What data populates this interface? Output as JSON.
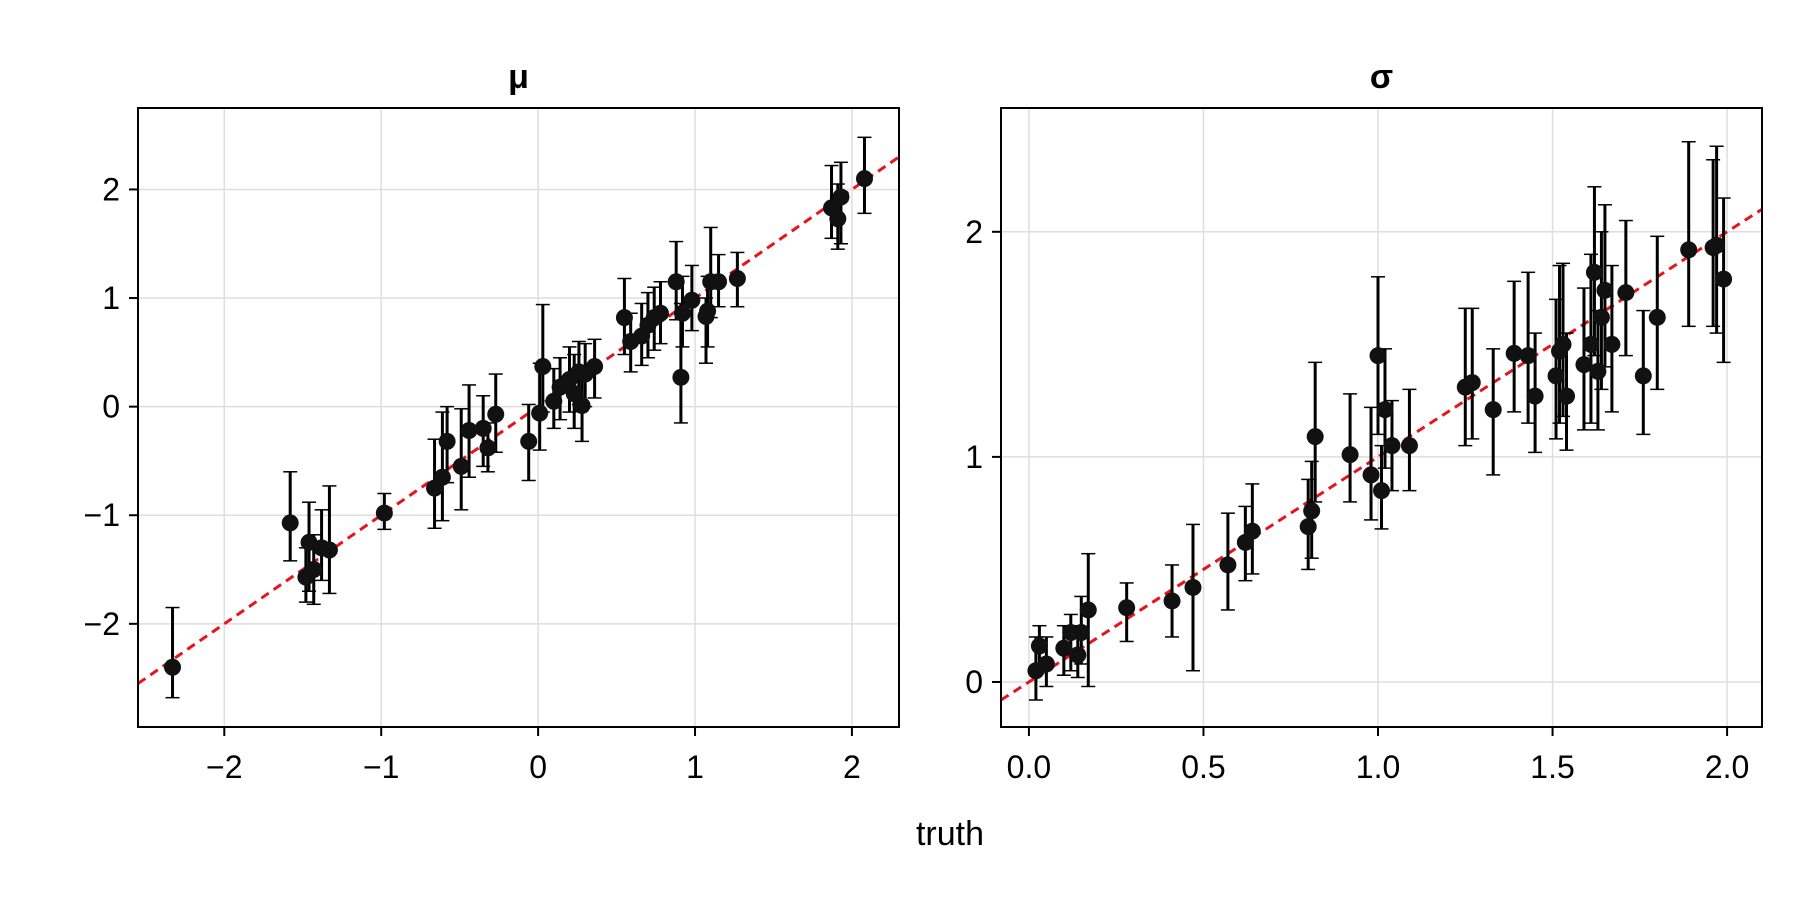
{
  "figure": {
    "xlabel": "truth",
    "colors": {
      "points": "#111111",
      "errorbars": "#000000",
      "reference_line": "#e8141c",
      "grid": "#dedede"
    }
  },
  "chart_data": [
    {
      "type": "scatter",
      "title": "μ",
      "xlabel": "truth",
      "ylabel": "",
      "xlim": [
        -2.55,
        2.3
      ],
      "ylim": [
        -2.95,
        2.75
      ],
      "xticks": [
        -2,
        -1,
        0,
        1,
        2
      ],
      "xtick_labels": [
        "−2",
        "−1",
        "0",
        "1",
        "2"
      ],
      "yticks": [
        -2,
        -1,
        0,
        1,
        2
      ],
      "ytick_labels": [
        "−2",
        "−1",
        "0",
        "1",
        "2"
      ],
      "grid": true,
      "reference_line": {
        "style": "dashed",
        "slope": 1,
        "intercept": 0
      },
      "series": [
        {
          "points": [
            {
              "x": -2.33,
              "y": -2.4,
              "lo": -2.68,
              "hi": -1.85
            },
            {
              "x": -1.58,
              "y": -1.07,
              "lo": -1.42,
              "hi": -0.6
            },
            {
              "x": -1.48,
              "y": -1.57,
              "lo": -1.8,
              "hi": -1.3
            },
            {
              "x": -1.46,
              "y": -1.25,
              "lo": -1.7,
              "hi": -0.88
            },
            {
              "x": -1.43,
              "y": -1.5,
              "lo": -1.82,
              "hi": -1.18
            },
            {
              "x": -1.38,
              "y": -1.3,
              "lo": -1.6,
              "hi": -0.95
            },
            {
              "x": -1.33,
              "y": -1.32,
              "lo": -1.72,
              "hi": -0.73
            },
            {
              "x": -0.98,
              "y": -0.98,
              "lo": -1.13,
              "hi": -0.8
            },
            {
              "x": -0.66,
              "y": -0.75,
              "lo": -1.12,
              "hi": -0.3
            },
            {
              "x": -0.61,
              "y": -0.65,
              "lo": -1.05,
              "hi": -0.05
            },
            {
              "x": -0.58,
              "y": -0.32,
              "lo": -0.7,
              "hi": 0.0
            },
            {
              "x": -0.49,
              "y": -0.55,
              "lo": -0.95,
              "hi": -0.02
            },
            {
              "x": -0.44,
              "y": -0.22,
              "lo": -0.65,
              "hi": 0.2
            },
            {
              "x": -0.35,
              "y": -0.2,
              "lo": -0.55,
              "hi": 0.1
            },
            {
              "x": -0.32,
              "y": -0.38,
              "lo": -0.6,
              "hi": -0.15
            },
            {
              "x": -0.27,
              "y": -0.07,
              "lo": -0.42,
              "hi": 0.3
            },
            {
              "x": -0.06,
              "y": -0.32,
              "lo": -0.68,
              "hi": 0.02
            },
            {
              "x": 0.01,
              "y": -0.06,
              "lo": -0.4,
              "hi": 0.4
            },
            {
              "x": 0.03,
              "y": 0.37,
              "lo": -0.05,
              "hi": 0.94
            },
            {
              "x": 0.1,
              "y": 0.05,
              "lo": -0.2,
              "hi": 0.35
            },
            {
              "x": 0.14,
              "y": 0.18,
              "lo": -0.12,
              "hi": 0.45
            },
            {
              "x": 0.2,
              "y": 0.25,
              "lo": -0.05,
              "hi": 0.55
            },
            {
              "x": 0.23,
              "y": 0.12,
              "lo": -0.2,
              "hi": 0.48
            },
            {
              "x": 0.26,
              "y": 0.32,
              "lo": 0.02,
              "hi": 0.6
            },
            {
              "x": 0.28,
              "y": 0.01,
              "lo": -0.32,
              "hi": 0.35
            },
            {
              "x": 0.3,
              "y": 0.3,
              "lo": 0.0,
              "hi": 0.58
            },
            {
              "x": 0.36,
              "y": 0.37,
              "lo": 0.08,
              "hi": 0.62
            },
            {
              "x": 0.55,
              "y": 0.82,
              "lo": 0.48,
              "hi": 1.18
            },
            {
              "x": 0.59,
              "y": 0.6,
              "lo": 0.32,
              "hi": 0.86
            },
            {
              "x": 0.66,
              "y": 0.65,
              "lo": 0.38,
              "hi": 0.95
            },
            {
              "x": 0.7,
              "y": 0.75,
              "lo": 0.45,
              "hi": 1.05
            },
            {
              "x": 0.74,
              "y": 0.82,
              "lo": 0.52,
              "hi": 1.1
            },
            {
              "x": 0.78,
              "y": 0.86,
              "lo": 0.58,
              "hi": 1.15
            },
            {
              "x": 0.88,
              "y": 1.15,
              "lo": 0.8,
              "hi": 1.52
            },
            {
              "x": 0.91,
              "y": 0.27,
              "lo": -0.15,
              "hi": 0.95
            },
            {
              "x": 0.92,
              "y": 0.86,
              "lo": 0.55,
              "hi": 1.2
            },
            {
              "x": 0.98,
              "y": 0.98,
              "lo": 0.7,
              "hi": 1.3
            },
            {
              "x": 1.07,
              "y": 0.83,
              "lo": 0.4,
              "hi": 1.0
            },
            {
              "x": 1.08,
              "y": 0.88,
              "lo": 0.55,
              "hi": 1.2
            },
            {
              "x": 1.1,
              "y": 1.15,
              "lo": 0.82,
              "hi": 1.65
            },
            {
              "x": 1.15,
              "y": 1.15,
              "lo": 0.92,
              "hi": 1.4
            },
            {
              "x": 1.27,
              "y": 1.18,
              "lo": 0.92,
              "hi": 1.42
            },
            {
              "x": 1.87,
              "y": 1.83,
              "lo": 1.55,
              "hi": 2.22
            },
            {
              "x": 1.91,
              "y": 1.73,
              "lo": 1.45,
              "hi": 2.05
            },
            {
              "x": 1.93,
              "y": 1.93,
              "lo": 1.5,
              "hi": 2.25
            },
            {
              "x": 2.08,
              "y": 2.1,
              "lo": 1.78,
              "hi": 2.48
            }
          ]
        }
      ]
    },
    {
      "type": "scatter",
      "title": "σ",
      "xlabel": "truth",
      "ylabel": "",
      "xlim": [
        -0.08,
        2.1
      ],
      "ylim": [
        -0.2,
        2.55
      ],
      "xticks": [
        0.0,
        0.5,
        1.0,
        1.5,
        2.0
      ],
      "xtick_labels": [
        "0.0",
        "0.5",
        "1.0",
        "1.5",
        "2.0"
      ],
      "yticks": [
        0,
        1,
        2
      ],
      "ytick_labels": [
        "0",
        "1",
        "2"
      ],
      "grid": true,
      "reference_line": {
        "style": "dashed",
        "slope": 1,
        "intercept": 0
      },
      "series": [
        {
          "points": [
            {
              "x": 0.02,
              "y": 0.05,
              "lo": -0.08,
              "hi": 0.2
            },
            {
              "x": 0.03,
              "y": 0.16,
              "lo": 0.05,
              "hi": 0.25
            },
            {
              "x": 0.05,
              "y": 0.08,
              "lo": -0.02,
              "hi": 0.2
            },
            {
              "x": 0.1,
              "y": 0.15,
              "lo": 0.03,
              "hi": 0.25
            },
            {
              "x": 0.12,
              "y": 0.22,
              "lo": 0.05,
              "hi": 0.3
            },
            {
              "x": 0.14,
              "y": 0.12,
              "lo": 0.02,
              "hi": 0.25
            },
            {
              "x": 0.15,
              "y": 0.22,
              "lo": 0.08,
              "hi": 0.38
            },
            {
              "x": 0.17,
              "y": 0.32,
              "lo": -0.02,
              "hi": 0.57
            },
            {
              "x": 0.28,
              "y": 0.33,
              "lo": 0.18,
              "hi": 0.44
            },
            {
              "x": 0.41,
              "y": 0.36,
              "lo": 0.2,
              "hi": 0.52
            },
            {
              "x": 0.47,
              "y": 0.42,
              "lo": 0.05,
              "hi": 0.7
            },
            {
              "x": 0.57,
              "y": 0.52,
              "lo": 0.32,
              "hi": 0.75
            },
            {
              "x": 0.62,
              "y": 0.62,
              "lo": 0.45,
              "hi": 0.78
            },
            {
              "x": 0.64,
              "y": 0.67,
              "lo": 0.48,
              "hi": 0.88
            },
            {
              "x": 0.8,
              "y": 0.69,
              "lo": 0.5,
              "hi": 0.9
            },
            {
              "x": 0.81,
              "y": 0.76,
              "lo": 0.55,
              "hi": 0.98
            },
            {
              "x": 0.82,
              "y": 1.09,
              "lo": 0.8,
              "hi": 1.42
            },
            {
              "x": 0.92,
              "y": 1.01,
              "lo": 0.8,
              "hi": 1.28
            },
            {
              "x": 0.98,
              "y": 0.92,
              "lo": 0.72,
              "hi": 1.22
            },
            {
              "x": 1.0,
              "y": 1.45,
              "lo": 1.1,
              "hi": 1.8
            },
            {
              "x": 1.01,
              "y": 0.85,
              "lo": 0.68,
              "hi": 1.05
            },
            {
              "x": 1.02,
              "y": 1.21,
              "lo": 0.95,
              "hi": 1.48
            },
            {
              "x": 1.04,
              "y": 1.05,
              "lo": 0.85,
              "hi": 1.25
            },
            {
              "x": 1.09,
              "y": 1.05,
              "lo": 0.85,
              "hi": 1.3
            },
            {
              "x": 1.25,
              "y": 1.31,
              "lo": 1.05,
              "hi": 1.66
            },
            {
              "x": 1.27,
              "y": 1.33,
              "lo": 1.08,
              "hi": 1.66
            },
            {
              "x": 1.33,
              "y": 1.21,
              "lo": 0.92,
              "hi": 1.48
            },
            {
              "x": 1.39,
              "y": 1.46,
              "lo": 1.2,
              "hi": 1.78
            },
            {
              "x": 1.43,
              "y": 1.45,
              "lo": 1.15,
              "hi": 1.82
            },
            {
              "x": 1.45,
              "y": 1.27,
              "lo": 1.02,
              "hi": 1.55
            },
            {
              "x": 1.51,
              "y": 1.36,
              "lo": 1.08,
              "hi": 1.7
            },
            {
              "x": 1.52,
              "y": 1.47,
              "lo": 1.15,
              "hi": 1.85
            },
            {
              "x": 1.53,
              "y": 1.5,
              "lo": 1.18,
              "hi": 1.86
            },
            {
              "x": 1.54,
              "y": 1.27,
              "lo": 1.03,
              "hi": 1.55
            },
            {
              "x": 1.59,
              "y": 1.41,
              "lo": 1.12,
              "hi": 1.75
            },
            {
              "x": 1.61,
              "y": 1.5,
              "lo": 1.15,
              "hi": 1.9
            },
            {
              "x": 1.62,
              "y": 1.82,
              "lo": 1.45,
              "hi": 2.2
            },
            {
              "x": 1.63,
              "y": 1.38,
              "lo": 1.12,
              "hi": 1.65
            },
            {
              "x": 1.64,
              "y": 1.62,
              "lo": 1.3,
              "hi": 2.0
            },
            {
              "x": 1.65,
              "y": 1.74,
              "lo": 1.4,
              "hi": 2.12
            },
            {
              "x": 1.67,
              "y": 1.5,
              "lo": 1.2,
              "hi": 1.85
            },
            {
              "x": 1.71,
              "y": 1.73,
              "lo": 1.45,
              "hi": 2.05
            },
            {
              "x": 1.76,
              "y": 1.36,
              "lo": 1.1,
              "hi": 1.65
            },
            {
              "x": 1.8,
              "y": 1.62,
              "lo": 1.3,
              "hi": 1.98
            },
            {
              "x": 1.89,
              "y": 1.92,
              "lo": 1.58,
              "hi": 2.4
            },
            {
              "x": 1.96,
              "y": 1.93,
              "lo": 1.58,
              "hi": 2.32
            },
            {
              "x": 1.97,
              "y": 1.94,
              "lo": 1.55,
              "hi": 2.38
            },
            {
              "x": 1.99,
              "y": 1.79,
              "lo": 1.42,
              "hi": 2.15
            }
          ]
        }
      ]
    }
  ]
}
